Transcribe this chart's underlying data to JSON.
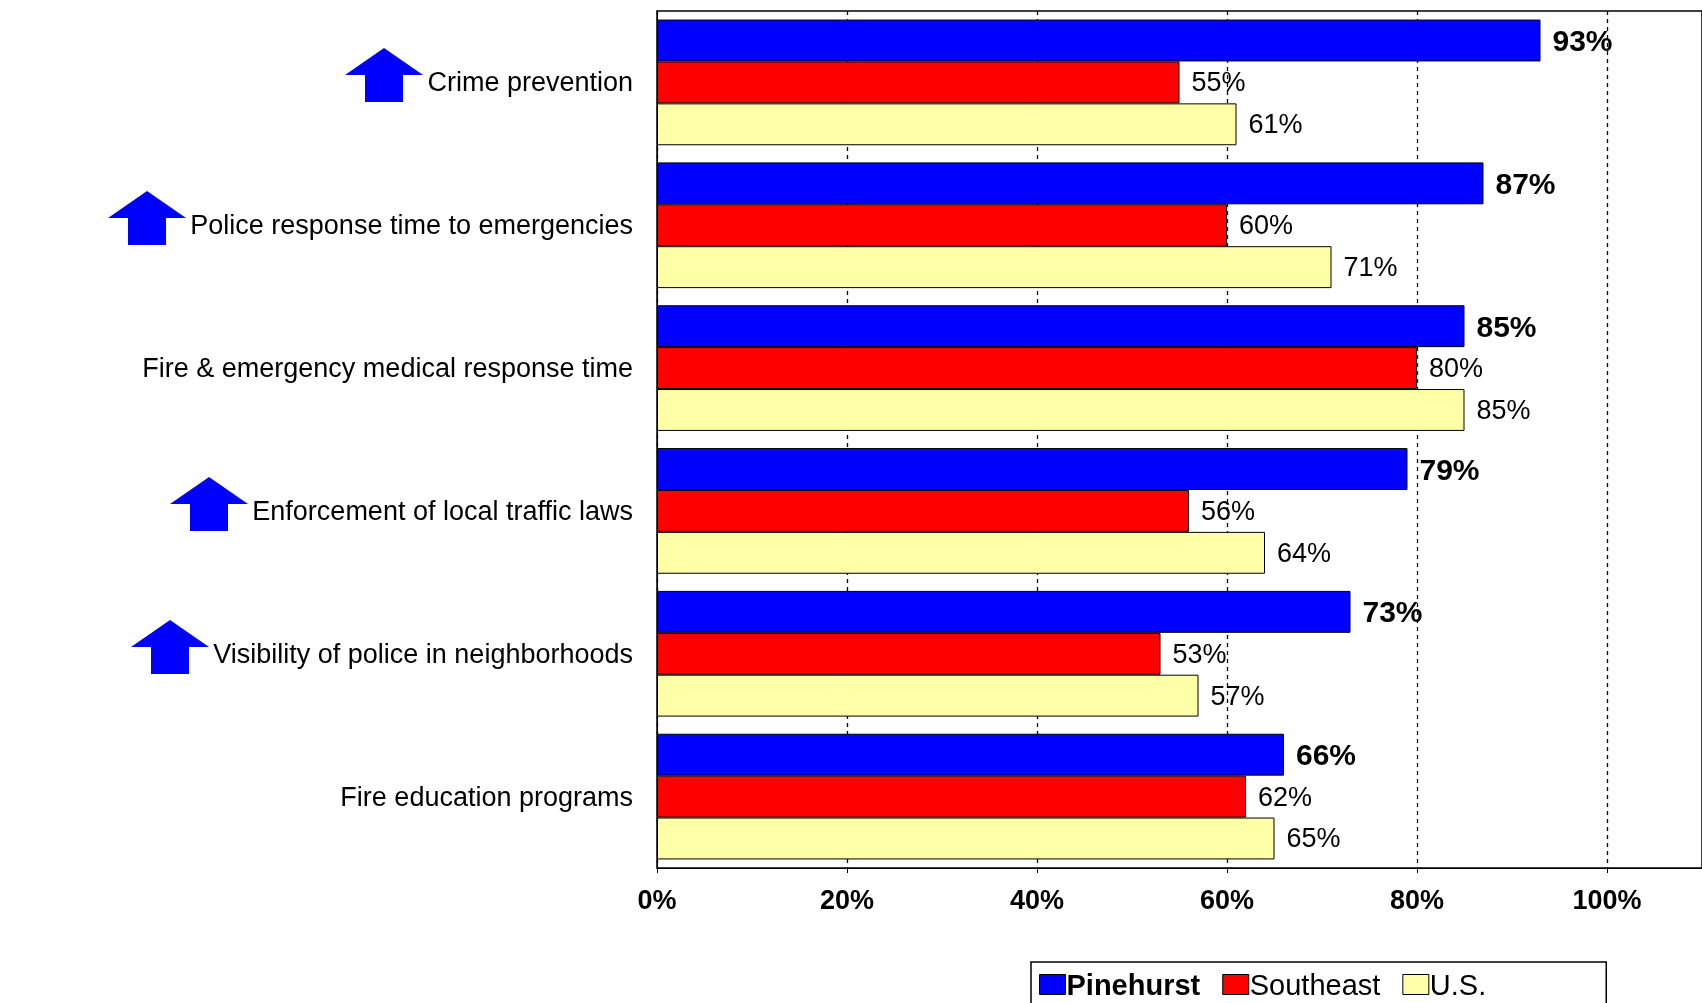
{
  "chart_data": {
    "type": "bar",
    "orientation": "horizontal",
    "categories": [
      "Crime prevention",
      "Police response time to emergencies",
      "Fire & emergency medical response time",
      "Enforcement of local traffic laws",
      "Visibility of police in neighborhoods",
      "Fire education programs"
    ],
    "series": [
      {
        "name": "Pinehurst",
        "color": "#0000ff",
        "values": [
          93,
          87,
          85,
          79,
          73,
          66
        ],
        "value_labels": [
          "93%",
          "87%",
          "85%",
          "79%",
          "73%",
          "66%"
        ]
      },
      {
        "name": "Southeast",
        "color": "#ff0000",
        "values": [
          55,
          60,
          80,
          56,
          53,
          62
        ],
        "value_labels": [
          "55%",
          "60%",
          "80%",
          "56%",
          "53%",
          "62%"
        ]
      },
      {
        "name": "U.S.",
        "color": "#ffffa8",
        "values": [
          61,
          71,
          85,
          64,
          57,
          65
        ],
        "value_labels": [
          "61%",
          "71%",
          "85%",
          "64%",
          "57%",
          "65%"
        ]
      }
    ],
    "xlim": [
      0,
      110
    ],
    "xticks": [
      {
        "value": 0,
        "label": "0%"
      },
      {
        "value": 20,
        "label": "20%"
      },
      {
        "value": 40,
        "label": "40%"
      },
      {
        "value": 60,
        "label": "60%"
      },
      {
        "value": 80,
        "label": "80%"
      },
      {
        "value": 100,
        "label": "100%"
      }
    ],
    "grid": "x",
    "legend": "bottom"
  }
}
